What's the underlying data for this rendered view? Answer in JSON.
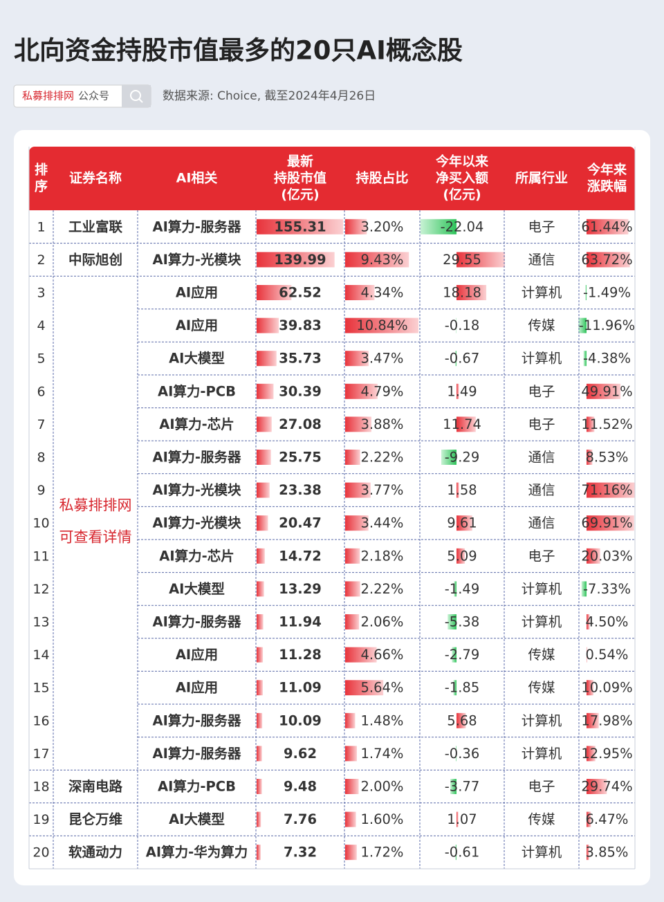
{
  "header": {
    "title": "北向资金持股市值最多的20只AI概念股",
    "search_brand": "私募排排网",
    "search_suffix": "公众号",
    "source": "数据来源: Choice, 截至2024年4月26日"
  },
  "table": {
    "columns": [
      [
        "排",
        "序"
      ],
      [
        "证券名称"
      ],
      [
        "AI相关"
      ],
      [
        "最新",
        "持股市值",
        "(亿元)"
      ],
      [
        "持股占比"
      ],
      [
        "今年以来",
        "净买入额",
        "(亿元)"
      ],
      [
        "所属行业"
      ],
      [
        "今年来",
        "涨跌幅"
      ]
    ],
    "merged_note": [
      "私募排排网",
      "可查看详情"
    ],
    "rows": [
      [
        "1",
        "工业富联",
        "AI算力-服务器",
        "155.31",
        "3.20%",
        "-22.04",
        "电子",
        "61.44%"
      ],
      [
        "2",
        "中际旭创",
        "AI算力-光模块",
        "139.99",
        "9.43%",
        "29.55",
        "通信",
        "63.72%"
      ],
      [
        "3",
        null,
        "AI应用",
        "62.52",
        "4.34%",
        "18.18",
        "计算机",
        "-1.49%"
      ],
      [
        "4",
        null,
        "AI应用",
        "39.83",
        "10.84%",
        "-0.18",
        "传媒",
        "-11.96%"
      ],
      [
        "5",
        null,
        "AI大模型",
        "35.73",
        "3.47%",
        "-0.67",
        "计算机",
        "-4.38%"
      ],
      [
        "6",
        null,
        "AI算力-PCB",
        "30.39",
        "4.79%",
        "1.49",
        "电子",
        "49.91%"
      ],
      [
        "7",
        null,
        "AI算力-芯片",
        "27.08",
        "3.88%",
        "11.74",
        "电子",
        "11.52%"
      ],
      [
        "8",
        null,
        "AI算力-服务器",
        "25.75",
        "2.22%",
        "-9.29",
        "通信",
        "8.53%"
      ],
      [
        "9",
        null,
        "AI算力-光模块",
        "23.38",
        "3.77%",
        "1.58",
        "通信",
        "71.16%"
      ],
      [
        "10",
        null,
        "AI算力-光模块",
        "20.47",
        "3.44%",
        "9.61",
        "通信",
        "69.91%"
      ],
      [
        "11",
        null,
        "AI算力-芯片",
        "14.72",
        "2.18%",
        "5.09",
        "电子",
        "20.03%"
      ],
      [
        "12",
        null,
        "AI大模型",
        "13.29",
        "2.22%",
        "-1.49",
        "计算机",
        "-7.33%"
      ],
      [
        "13",
        null,
        "AI算力-服务器",
        "11.94",
        "2.06%",
        "-5.38",
        "计算机",
        "4.50%"
      ],
      [
        "14",
        null,
        "AI应用",
        "11.28",
        "4.66%",
        "-2.79",
        "传媒",
        "0.54%"
      ],
      [
        "15",
        null,
        "AI应用",
        "11.09",
        "5.64%",
        "-1.85",
        "传媒",
        "10.09%"
      ],
      [
        "16",
        null,
        "AI算力-服务器",
        "10.09",
        "1.48%",
        "5.68",
        "计算机",
        "17.98%"
      ],
      [
        "17",
        null,
        "AI算力-服务器",
        "9.62",
        "1.74%",
        "-0.36",
        "计算机",
        "12.95%"
      ],
      [
        "18",
        "深南电路",
        "AI算力-PCB",
        "9.48",
        "2.00%",
        "-3.77",
        "电子",
        "29.74%"
      ],
      [
        "19",
        "昆仑万维",
        "AI大模型",
        "7.76",
        "1.60%",
        "1.07",
        "传媒",
        "6.47%"
      ],
      [
        "20",
        "软通动力",
        "AI算力-华为算力",
        "7.32",
        "1.72%",
        "-0.61",
        "计算机",
        "3.85%"
      ]
    ]
  }
}
